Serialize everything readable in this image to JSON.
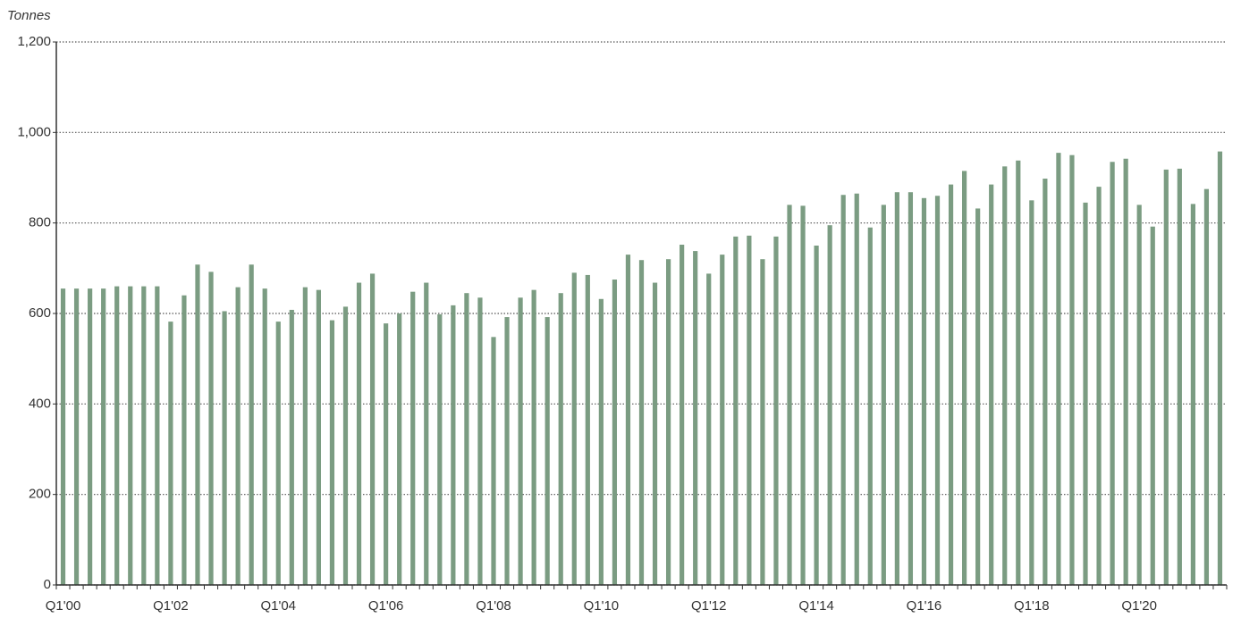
{
  "chart_data": {
    "type": "bar",
    "y_axis_label": "Tonnes",
    "categories": [
      "Q1'00",
      null,
      null,
      null,
      null,
      null,
      null,
      null,
      "Q1'02",
      null,
      null,
      null,
      null,
      null,
      null,
      null,
      "Q1'04",
      null,
      null,
      null,
      null,
      null,
      null,
      null,
      "Q1'06",
      null,
      null,
      null,
      null,
      null,
      null,
      null,
      "Q1'08",
      null,
      null,
      null,
      null,
      null,
      null,
      null,
      "Q1'10",
      null,
      null,
      null,
      null,
      null,
      null,
      null,
      "Q1'12",
      null,
      null,
      null,
      null,
      null,
      null,
      null,
      "Q1'14",
      null,
      null,
      null,
      null,
      null,
      null,
      null,
      "Q1'16",
      null,
      null,
      null,
      null,
      null,
      null,
      null,
      "Q1'18",
      null,
      null,
      null,
      null,
      null,
      null,
      null,
      "Q1'20",
      null,
      null,
      null,
      null,
      null,
      null
    ],
    "values": [
      655,
      655,
      655,
      655,
      660,
      660,
      660,
      660,
      582,
      640,
      708,
      692,
      605,
      658,
      708,
      655,
      582,
      608,
      658,
      652,
      585,
      615,
      668,
      688,
      578,
      600,
      648,
      668,
      598,
      618,
      645,
      635,
      548,
      592,
      635,
      652,
      592,
      645,
      690,
      685,
      632,
      675,
      730,
      718,
      668,
      720,
      752,
      738,
      688,
      730,
      770,
      772,
      720,
      770,
      840,
      838,
      750,
      795,
      862,
      865,
      790,
      840,
      868,
      868,
      855,
      860,
      885,
      915,
      832,
      885,
      925,
      938,
      850,
      898,
      955,
      950,
      845,
      880,
      935,
      942,
      840,
      792,
      918,
      920,
      842,
      875,
      958
    ],
    "color": "#7b9c82",
    "ylim": [
      0,
      1200
    ],
    "yticks": [
      0,
      200,
      400,
      600,
      800,
      {
        "value": 1000,
        "label": "1,000"
      },
      {
        "value": 1200,
        "label": "1,200"
      }
    ],
    "grid": true
  }
}
